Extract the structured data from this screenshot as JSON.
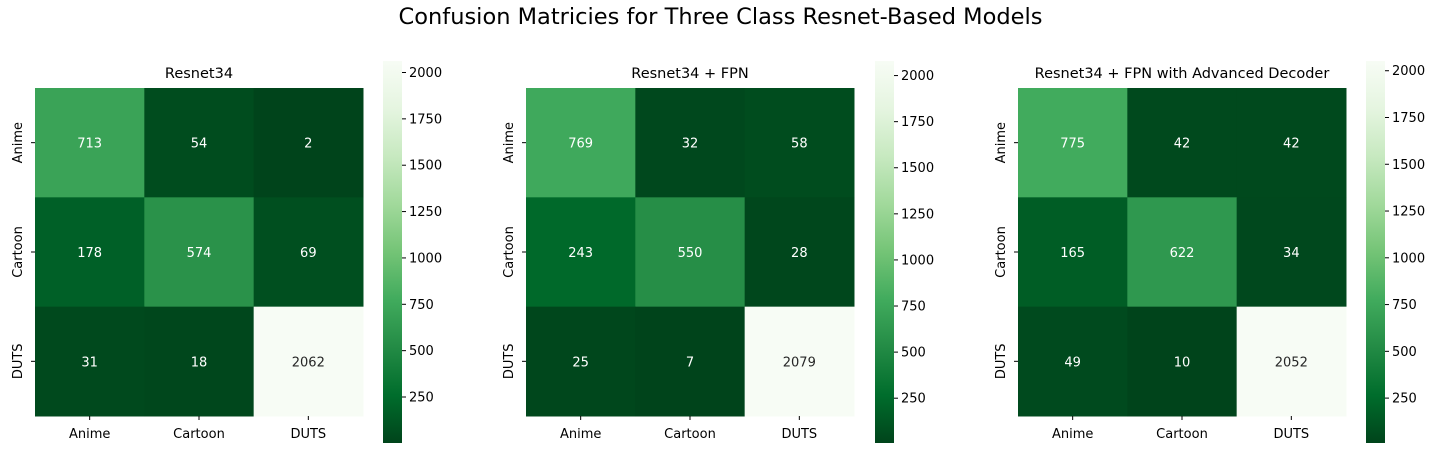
{
  "title": "Confusion Matricies for Three Class Resnet-Based Models",
  "chart_data": [
    {
      "type": "heatmap",
      "title": "Resnet34",
      "rows": [
        "Anime",
        "Cartoon",
        "DUTS"
      ],
      "cols": [
        "Anime",
        "Cartoon",
        "DUTS"
      ],
      "values": [
        [
          713,
          54,
          2
        ],
        [
          178,
          574,
          69
        ],
        [
          31,
          18,
          2062
        ]
      ],
      "colorbar": {
        "range": [
          2,
          2062
        ],
        "ticks": [
          250,
          500,
          750,
          1000,
          1250,
          1500,
          1750,
          2000
        ]
      }
    },
    {
      "type": "heatmap",
      "title": "Resnet34 + FPN",
      "rows": [
        "Anime",
        "Cartoon",
        "DUTS"
      ],
      "cols": [
        "Anime",
        "Cartoon",
        "DUTS"
      ],
      "values": [
        [
          769,
          32,
          58
        ],
        [
          243,
          550,
          28
        ],
        [
          25,
          7,
          2079
        ]
      ],
      "colorbar": {
        "range": [
          7,
          2079
        ],
        "ticks": [
          250,
          500,
          750,
          1000,
          1250,
          1500,
          1750,
          2000
        ]
      }
    },
    {
      "type": "heatmap",
      "title": "Resnet34 + FPN with Advanced Decoder",
      "rows": [
        "Anime",
        "Cartoon",
        "DUTS"
      ],
      "cols": [
        "Anime",
        "Cartoon",
        "DUTS"
      ],
      "values": [
        [
          775,
          42,
          42
        ],
        [
          165,
          622,
          34
        ],
        [
          49,
          10,
          2052
        ]
      ],
      "colorbar": {
        "range": [
          10,
          2052
        ],
        "ticks": [
          250,
          500,
          750,
          1000,
          1250,
          1500,
          1750,
          2000
        ]
      }
    }
  ],
  "colormap": {
    "name": "Greens_r",
    "stops": [
      "#00441b",
      "#006d2c",
      "#238b45",
      "#41ab5d",
      "#74c476",
      "#a1d99b",
      "#c7e9c0",
      "#e5f5e0",
      "#f7fcf5"
    ]
  }
}
